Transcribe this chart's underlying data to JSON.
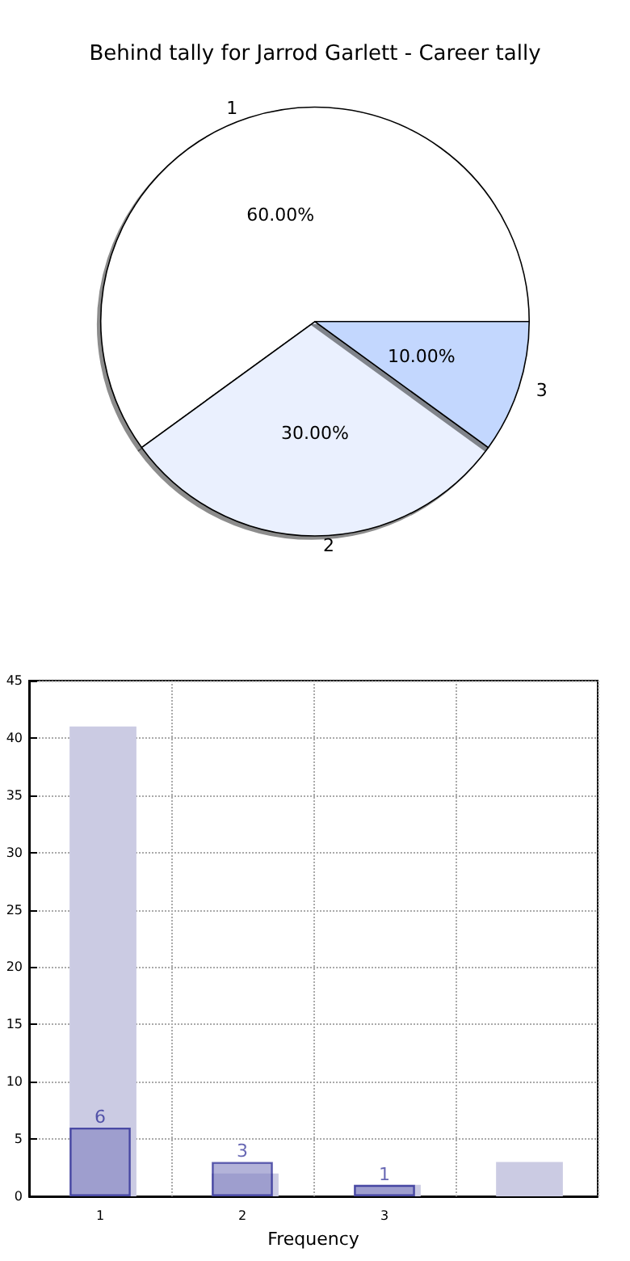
{
  "chart_data": [
    {
      "type": "pie",
      "title": "Behind tally for Jarrod Garlett - Career tally",
      "categories": [
        "1",
        "2",
        "3"
      ],
      "values": [
        60,
        30,
        10
      ],
      "colors": [
        "#ffffff",
        "#eaf0fe",
        "#c3d7fe"
      ],
      "value_labels": [
        "60.00%",
        "30.00%",
        "10.00%"
      ],
      "legend": false
    },
    {
      "type": "bar",
      "xlabel": "Frequency",
      "categories": [
        "1",
        "2",
        "3",
        null
      ],
      "series": [
        {
          "color": "#cbcbe3",
          "values": [
            41,
            2,
            1,
            3
          ]
        },
        {
          "color": "#8080c0",
          "values": [
            6,
            3,
            1,
            null
          ],
          "value_labels": [
            "6",
            "3",
            "1",
            null
          ]
        }
      ],
      "ylim": [
        0,
        45
      ],
      "yticks": [
        0,
        5,
        10,
        15,
        20,
        25,
        30,
        35,
        40,
        45
      ],
      "grid": true,
      "legend": false
    }
  ]
}
